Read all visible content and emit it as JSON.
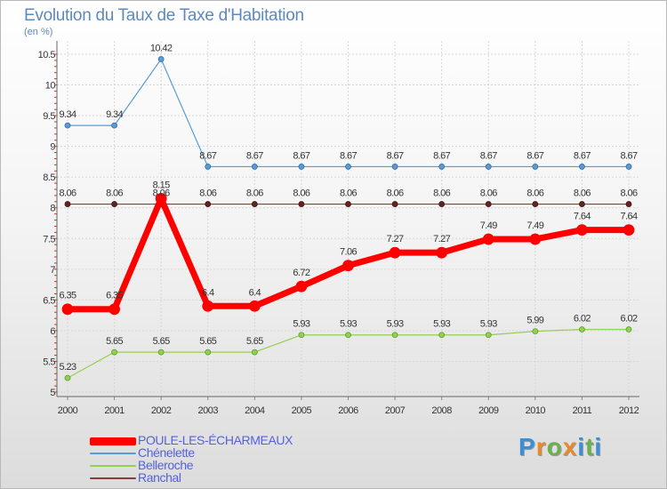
{
  "title": "Evolution du Taux de Taxe d'Habitation",
  "unit_label": "(en %)",
  "logo": {
    "letters": [
      "P",
      "r",
      "o",
      "x",
      "i",
      "t",
      "i"
    ],
    "colors": [
      "#3a8fd6",
      "#e8892a",
      "#6ab04c",
      "#e8892a",
      "#3a8fd6",
      "#6ab04c",
      "#3a8fd6"
    ]
  },
  "chart_data": {
    "type": "line",
    "title": "Evolution du Taux de Taxe d'Habitation",
    "ylabel": "(en %)",
    "xlabel": "",
    "x": [
      "2000",
      "2001",
      "2002",
      "2003",
      "2004",
      "2005",
      "2006",
      "2007",
      "2008",
      "2009",
      "2010",
      "2011",
      "2012"
    ],
    "ylim": [
      5,
      10.5
    ],
    "yticks": [
      "5",
      "5.5",
      "6",
      "6.5",
      "7",
      "7.5",
      "8",
      "8.5",
      "9",
      "9.5",
      "10",
      "10.5"
    ],
    "grid": true,
    "legend_position": "bottom-left",
    "series": [
      {
        "name": "POULE-LES-ÉCHARMEAUX",
        "color": "#ff0000",
        "values": [
          6.35,
          6.35,
          8.15,
          6.4,
          6.4,
          6.72,
          7.06,
          7.27,
          7.27,
          7.49,
          7.49,
          7.64,
          7.64
        ],
        "labels": [
          "6.35",
          "6.35",
          "8.15",
          "6.4",
          "6.4",
          "6.72",
          "7.06",
          "7.27",
          "7.27",
          "7.49",
          "7.49",
          "7.64",
          "7.64"
        ]
      },
      {
        "name": "Chénelette",
        "color": "#5b9bd5",
        "values": [
          9.34,
          9.34,
          10.42,
          8.67,
          8.67,
          8.67,
          8.67,
          8.67,
          8.67,
          8.67,
          8.67,
          8.67,
          8.67
        ],
        "labels": [
          "9.34",
          "9.34",
          "10.42",
          "8.67",
          "8.67",
          "8.67",
          "8.67",
          "8.67",
          "8.67",
          "8.67",
          "8.67",
          "8.67",
          "8.67"
        ]
      },
      {
        "name": "Belleroche",
        "color": "#92d050",
        "values": [
          5.23,
          5.65,
          5.65,
          5.65,
          5.65,
          5.93,
          5.93,
          5.93,
          5.93,
          5.93,
          5.99,
          6.02,
          6.02
        ],
        "labels": [
          "5.23",
          "5.65",
          "5.65",
          "5.65",
          "5.65",
          "5.93",
          "5.93",
          "5.93",
          "5.93",
          "5.93",
          "5.99",
          "6.02",
          "6.02"
        ]
      },
      {
        "name": "Ranchal",
        "color": "#8b3a3a",
        "values": [
          8.06,
          8.06,
          8.06,
          8.06,
          8.06,
          8.06,
          8.06,
          8.06,
          8.06,
          8.06,
          8.06,
          8.06,
          8.06
        ],
        "labels": [
          "8.06",
          "8.06",
          "8.06",
          "8.06",
          "8.06",
          "8.06",
          "8.06",
          "8.06",
          "8.06",
          "8.06",
          "8.06",
          "8.06",
          "8.06"
        ]
      }
    ]
  }
}
